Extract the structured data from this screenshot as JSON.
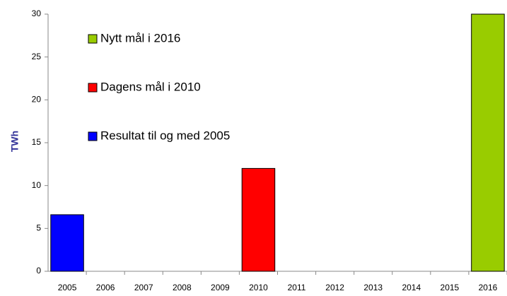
{
  "chart_data": {
    "type": "bar",
    "ylabel": "TWh",
    "categories": [
      "2005",
      "2006",
      "2007",
      "2008",
      "2009",
      "2010",
      "2011",
      "2012",
      "2013",
      "2014",
      "2015",
      "2016"
    ],
    "series": [
      {
        "name": "Nytt mål i 2016",
        "color": "#99cc00",
        "values": [
          null,
          null,
          null,
          null,
          null,
          null,
          null,
          null,
          null,
          null,
          null,
          30
        ]
      },
      {
        "name": "Dagens mål i 2010",
        "color": "#ff0000",
        "values": [
          null,
          null,
          null,
          null,
          null,
          12,
          null,
          null,
          null,
          null,
          null,
          null
        ]
      },
      {
        "name": "Resultat til og med 2005",
        "color": "#0000ff",
        "values": [
          6.6,
          null,
          null,
          null,
          null,
          null,
          null,
          null,
          null,
          null,
          null,
          null
        ]
      }
    ],
    "ylim": [
      0,
      30
    ],
    "yticks": [
      0,
      5,
      10,
      15,
      20,
      25,
      30
    ],
    "grid": false
  }
}
